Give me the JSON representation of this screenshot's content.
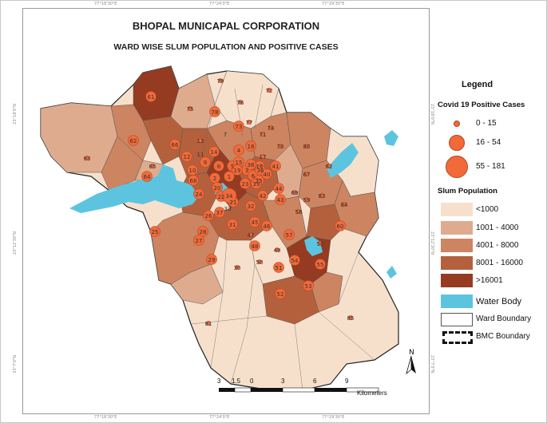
{
  "map": {
    "title": "BHOPAL MUNICAPAL CORPORATION",
    "subtitle": "WARD WISE SLUM POPULATION AND POSITIVE CASES",
    "coordinates_top": [
      "77°18'30\"E",
      "77°24'0\"E",
      "77°29'30\"E"
    ],
    "coordinates_bottom": [
      "77°18'30\"E",
      "77°24'0\"E",
      "77°29'30\"E"
    ],
    "coordinates_left": [
      "23°18'0\"N",
      "23°12'30\"N",
      "23°7'0\"N"
    ],
    "coordinates_right": [
      "23°18'0\"N",
      "23°12'30\"N",
      "23°7'0\"N"
    ],
    "north_label": "N",
    "scale": {
      "ticks": [
        "3",
        "1.5",
        "0",
        "3",
        "6",
        "9"
      ],
      "unit": "Kilometers"
    },
    "ward_labels": [
      "61",
      "79",
      "75",
      "78",
      "76",
      "72",
      "74",
      "71",
      "13",
      "11",
      "12",
      "14",
      "8",
      "9",
      "10",
      "4",
      "5",
      "7",
      "18",
      "15",
      "16",
      "17",
      "3",
      "6",
      "2",
      "1",
      "19",
      "20",
      "22",
      "21",
      "23",
      "24",
      "26",
      "28",
      "27",
      "33",
      "29",
      "30",
      "31",
      "32",
      "25",
      "62",
      "63",
      "64",
      "65",
      "66",
      "67",
      "68",
      "69",
      "70",
      "73",
      "77",
      "80",
      "81",
      "82",
      "83",
      "84",
      "85",
      "34",
      "35",
      "36",
      "37",
      "38",
      "39",
      "40",
      "41",
      "42",
      "43",
      "44",
      "45",
      "46",
      "47",
      "48",
      "49",
      "50",
      "51",
      "52",
      "53",
      "54",
      "55",
      "56",
      "57",
      "58",
      "59",
      "60"
    ]
  },
  "legend": {
    "title": "Legend",
    "covid_heading": "Covid 19 Positive Cases",
    "covid_classes": [
      "0 - 15",
      "16 - 54",
      "55 - 181"
    ],
    "slum_heading": "Slum Population",
    "slum_classes": [
      {
        "label": "<1000",
        "color": "#f6e0cc"
      },
      {
        "label": "1001 - 4000",
        "color": "#dfab8f"
      },
      {
        "label": "4001 - 8000",
        "color": "#cd8460"
      },
      {
        "label": "8001 - 16000",
        "color": "#b5603c"
      },
      {
        "label": ">16001",
        "color": "#943b22"
      }
    ],
    "water_label": "Water Body",
    "ward_boundary_label": "Ward Boundary",
    "bmc_boundary_label": "BMC Boundary"
  },
  "colors": {
    "water": "#5dc4df",
    "case_marker": "#f26a3a",
    "case_marker_border": "#b4461f"
  }
}
